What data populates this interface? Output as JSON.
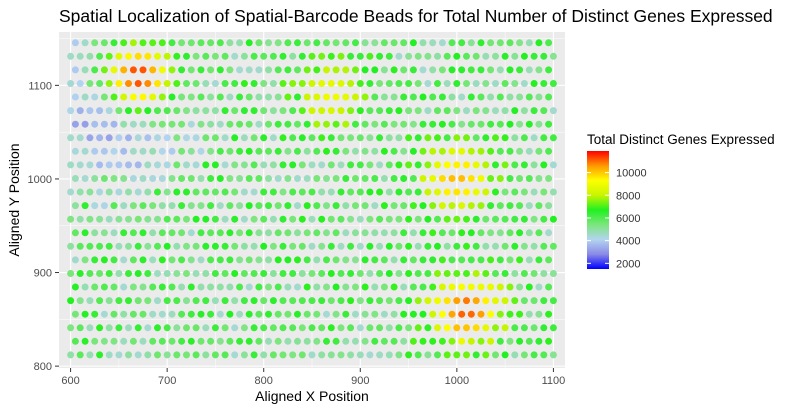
{
  "chart_data": {
    "type": "scatter",
    "title": "Spatial Localization of Spatial-Barcode Beads for Total Number of Distinct Genes Expressed",
    "xlabel": "Aligned X Position",
    "ylabel": "Aligned Y Position",
    "xlim": [
      588,
      1112
    ],
    "ylim": [
      798,
      1157
    ],
    "x_ticks": [
      "600",
      "700",
      "800",
      "900",
      "1000",
      "1100"
    ],
    "y_ticks": [
      "800",
      "900",
      "1000",
      "1100"
    ],
    "grid": true,
    "legend": {
      "title": "Total Distinct Genes Expressed",
      "placement": "right",
      "ticks": [
        "2000",
        "4000",
        "6000",
        "8000",
        "10000"
      ],
      "range": [
        1500,
        11900
      ],
      "colors": [
        "#0000ff",
        "#8a8ae6",
        "#b3d4f0",
        "#7ce67c",
        "#21f021",
        "#c8f500",
        "#ffff00",
        "#ff9900",
        "#ff0000"
      ]
    },
    "grid_spec": {
      "x_start": 600,
      "x_step": 10,
      "cols": 51,
      "y_start": 812,
      "y_step": 14.5,
      "rows": 24,
      "odd_row_x_offset": 5
    },
    "value_model": {
      "base": 5600,
      "low_region_center": [
        640,
        1080
      ],
      "low_region_radius": 75,
      "low_region_min": 1800,
      "high_spots": [
        {
          "x": 670,
          "y": 1110,
          "value": 11500
        },
        {
          "x": 1000,
          "y": 1000,
          "value": 10200
        },
        {
          "x": 1010,
          "y": 860,
          "value": 11200
        },
        {
          "x": 870,
          "y": 1090,
          "value": 9000
        }
      ]
    }
  }
}
